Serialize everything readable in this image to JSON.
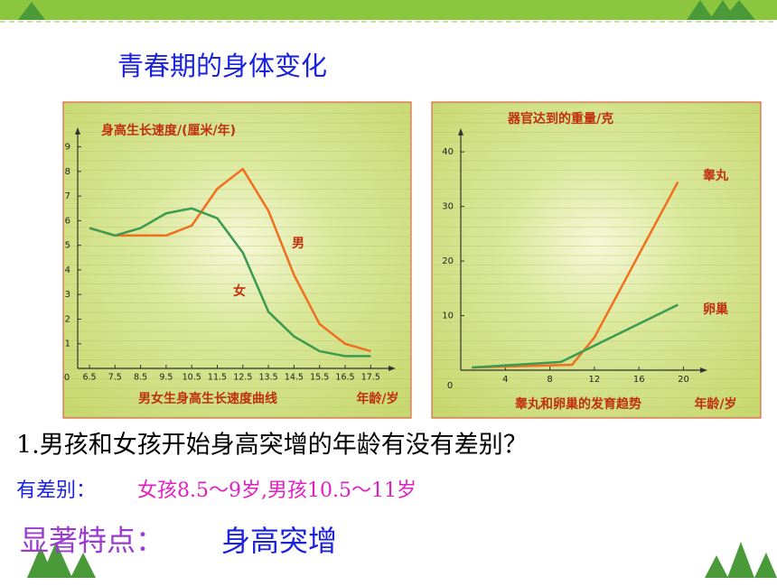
{
  "slide": {
    "title": "青春期的身体变化",
    "question": "1.男孩和女孩开始身高突增的年龄有没有差别？",
    "answer_label": "有差别：",
    "answer": "女孩8.5～9岁,男孩10.5～11岁",
    "feature_label": "显著特点：",
    "feature": "身高突增"
  },
  "chart_data": [
    {
      "type": "line",
      "title": "身高生长速度/(厘米/年)",
      "x_label": "年龄/岁",
      "caption": "男女生身高生长速度曲线",
      "categories": [
        "6.5",
        "7.5",
        "8.5",
        "9.5",
        "10.5",
        "11.5",
        "12.5",
        "13.5",
        "14.5",
        "15.5",
        "16.5",
        "17.5"
      ],
      "series": [
        {
          "name": "男",
          "color": "#f07020",
          "values": [
            5.7,
            5.4,
            5.4,
            5.4,
            5.8,
            7.3,
            8.1,
            6.4,
            3.8,
            1.8,
            1.0,
            0.7
          ]
        },
        {
          "name": "女",
          "color": "#3a9a50",
          "values": [
            5.7,
            5.4,
            5.7,
            6.3,
            6.5,
            6.1,
            4.7,
            2.3,
            1.3,
            0.7,
            0.5,
            0.5
          ]
        }
      ],
      "ylim": [
        0,
        9.5
      ],
      "yticks": [
        0,
        1,
        2,
        3,
        4,
        5,
        6,
        7,
        8,
        9
      ]
    },
    {
      "type": "line",
      "title": "器官达到的重量/克",
      "x_label": "年龄/岁",
      "caption": "睾丸和卵巢的发育趋势",
      "series": [
        {
          "name": "睾丸",
          "color": "#f07020",
          "x": [
            1,
            10,
            12,
            19.5
          ],
          "values": [
            0.5,
            1,
            6,
            34.5
          ]
        },
        {
          "name": "卵巢",
          "color": "#3a9a50",
          "x": [
            1,
            9,
            19.5
          ],
          "values": [
            0.5,
            1.5,
            12
          ]
        }
      ],
      "xlim": [
        0,
        21.5
      ],
      "xticks": [
        4,
        8,
        12,
        16,
        20
      ],
      "ylim": [
        0,
        43
      ],
      "yticks": [
        0,
        10,
        20,
        30,
        40
      ]
    }
  ]
}
